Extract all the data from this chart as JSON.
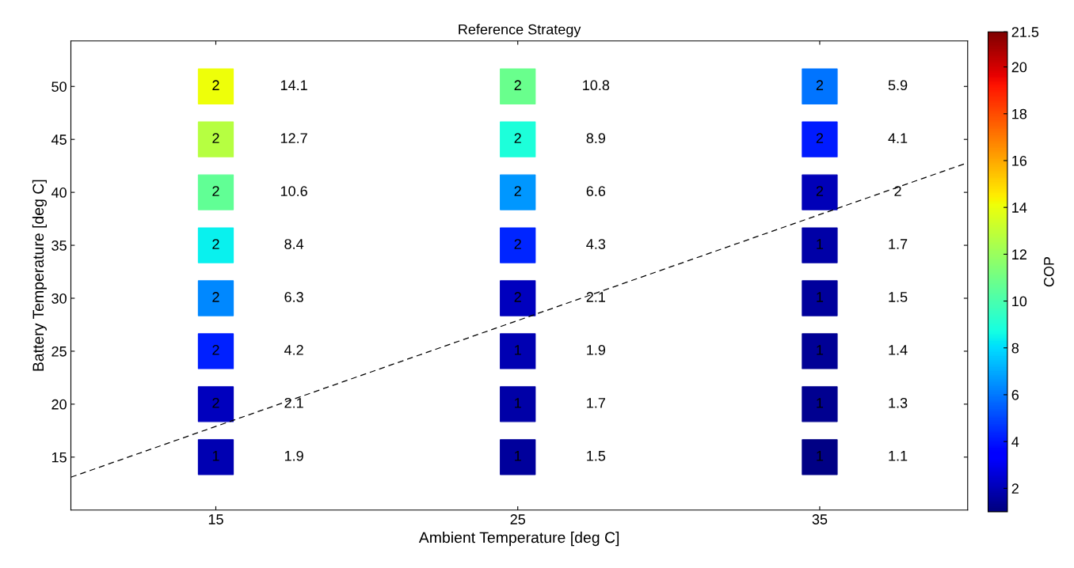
{
  "chart_data": {
    "type": "scatter",
    "title": "Reference Strategy",
    "xlabel": "Ambient Temperature [deg C]",
    "ylabel": "Battery Temperature [deg C]",
    "clabel": "COP",
    "xlim": [
      10.2,
      39.9
    ],
    "ylim": [
      10,
      54.3
    ],
    "xticks": [
      15,
      25,
      35
    ],
    "yticks": [
      15,
      20,
      25,
      30,
      35,
      40,
      45,
      50
    ],
    "clim": [
      1,
      21.5
    ],
    "cticks": [
      2,
      4,
      6,
      8,
      10,
      12,
      14,
      16,
      18,
      20,
      21.5
    ],
    "grid": false,
    "legend": false,
    "series": [
      {
        "type": "scatter",
        "marker": "square",
        "colors": [
          "#0000b2",
          "#0000be",
          "#0020ff",
          "#0088ff",
          "#09f1ee",
          "#61ff95",
          "#b6ff41",
          "#eeff09",
          "#00009c",
          "#0000a7",
          "#0000b2",
          "#0000be",
          "#0025ff",
          "#0097ff",
          "#1dffda",
          "#69ff8d",
          "#000085",
          "#000090",
          "#000096",
          "#00009c",
          "#0000a7",
          "#0000b8",
          "#001bff",
          "#0074ff"
        ],
        "x": [
          15,
          15,
          15,
          15,
          15,
          15,
          15,
          15,
          25,
          25,
          25,
          25,
          25,
          25,
          25,
          25,
          35,
          35,
          35,
          35,
          35,
          35,
          35,
          35
        ],
        "values": [
          15,
          20,
          25,
          30,
          35,
          40,
          45,
          50,
          15,
          20,
          25,
          30,
          35,
          40,
          45,
          50,
          15,
          20,
          25,
          30,
          35,
          40,
          45,
          50
        ],
        "cvalues": [
          1.9,
          2.1,
          4.2,
          6.3,
          8.4,
          10.6,
          12.7,
          14.1,
          1.5,
          1.7,
          1.9,
          2.1,
          4.3,
          6.6,
          8.9,
          10.8,
          1.1,
          1.3,
          1.4,
          1.5,
          1.7,
          2,
          4.1,
          5.9
        ]
      },
      {
        "type": "line",
        "color": "#000000",
        "line_style": "dashed",
        "marker": "none",
        "x": [
          10.2,
          39.9
        ],
        "values": [
          13.1,
          42.8
        ]
      }
    ],
    "annotations": [
      {
        "text": "1",
        "x": 15,
        "y": 15
      },
      {
        "text": "2",
        "x": 15,
        "y": 20
      },
      {
        "text": "2",
        "x": 15,
        "y": 25
      },
      {
        "text": "2",
        "x": 15,
        "y": 30
      },
      {
        "text": "2",
        "x": 15,
        "y": 35
      },
      {
        "text": "2",
        "x": 15,
        "y": 40
      },
      {
        "text": "2",
        "x": 15,
        "y": 45
      },
      {
        "text": "2",
        "x": 15,
        "y": 50
      },
      {
        "text": "1",
        "x": 25,
        "y": 15
      },
      {
        "text": "1",
        "x": 25,
        "y": 20
      },
      {
        "text": "1",
        "x": 25,
        "y": 25
      },
      {
        "text": "2",
        "x": 25,
        "y": 30
      },
      {
        "text": "2",
        "x": 25,
        "y": 35
      },
      {
        "text": "2",
        "x": 25,
        "y": 40
      },
      {
        "text": "2",
        "x": 25,
        "y": 45
      },
      {
        "text": "2",
        "x": 25,
        "y": 50
      },
      {
        "text": "1",
        "x": 35,
        "y": 15
      },
      {
        "text": "1",
        "x": 35,
        "y": 20
      },
      {
        "text": "1",
        "x": 35,
        "y": 25
      },
      {
        "text": "1",
        "x": 35,
        "y": 30
      },
      {
        "text": "1",
        "x": 35,
        "y": 35
      },
      {
        "text": "2",
        "x": 35,
        "y": 40
      },
      {
        "text": "2",
        "x": 35,
        "y": 45
      },
      {
        "text": "2",
        "x": 35,
        "y": 50
      },
      "1.9",
      "2.1",
      "4.2",
      "6.3",
      "8.4",
      "10.6",
      "12.7",
      "14.1",
      "1.5",
      "1.7",
      "1.9",
      "2.1",
      "4.3",
      "6.6",
      "8.9",
      "10.8",
      "1.1",
      "1.3",
      "1.4",
      "1.5",
      "1.7",
      "2",
      "4.1",
      "5.9"
    ]
  }
}
